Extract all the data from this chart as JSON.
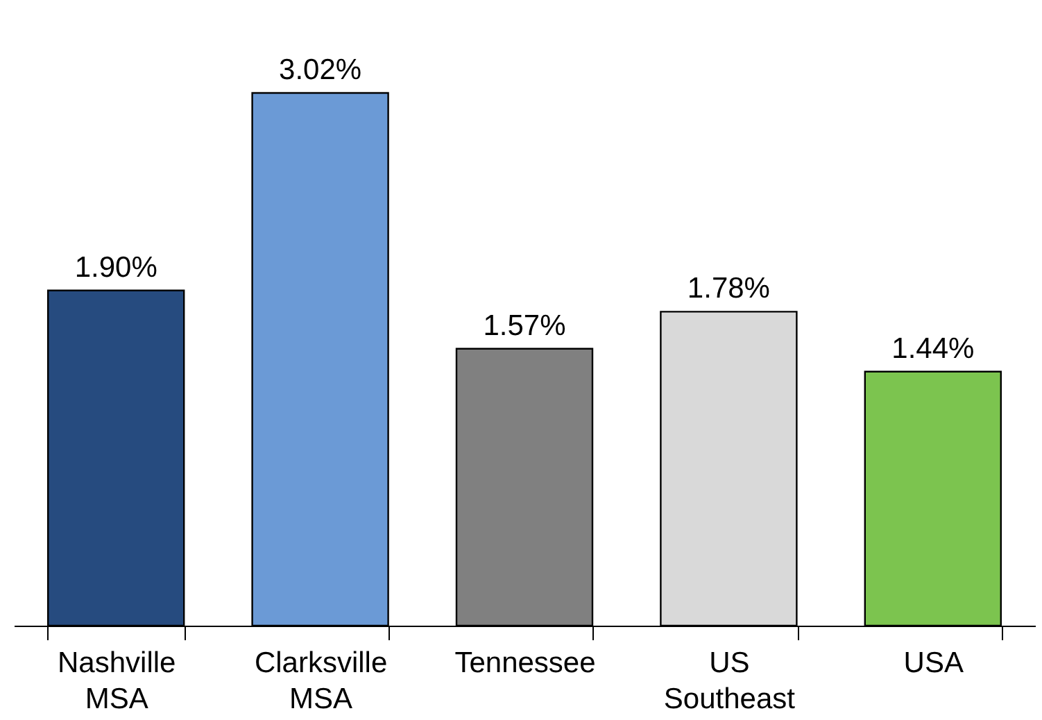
{
  "chart_data": {
    "type": "bar",
    "categories": [
      "Nashville MSA",
      "Clarksville MSA",
      "Tennessee",
      "US Southeast",
      "USA"
    ],
    "values": [
      1.9,
      3.02,
      1.57,
      1.78,
      1.44
    ],
    "colors": [
      "#264b7f",
      "#6b9ad6",
      "#808080",
      "#d9d9d9",
      "#7cc44f"
    ],
    "value_labels": [
      "1.90%",
      "3.02%",
      "1.57%",
      "1.78%",
      "1.44%"
    ],
    "tick_labels": "x",
    "grid": false
  }
}
